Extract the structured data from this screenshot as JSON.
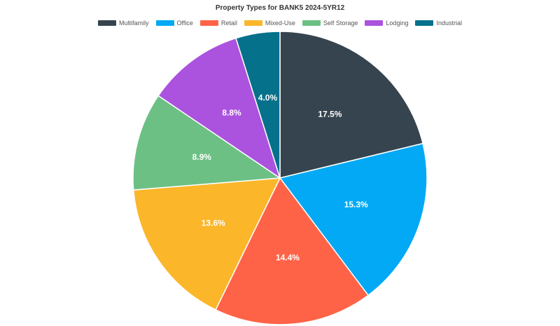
{
  "chart_data": {
    "type": "pie",
    "title": "Property Types for BANK5 2024-5YR12",
    "legend_position": "top",
    "categories": [
      "Multifamily",
      "Office",
      "Retail",
      "Mixed-Use",
      "Self Storage",
      "Lodging",
      "Industrial"
    ],
    "values": [
      17.5,
      15.3,
      14.4,
      13.6,
      8.9,
      8.8,
      4.0
    ],
    "labels": [
      "17.5%",
      "15.3%",
      "14.4%",
      "13.6%",
      "8.9%",
      "8.8%",
      "4.0%"
    ],
    "colors": [
      "#36444f",
      "#03a9f4",
      "#ff6347",
      "#fbb62a",
      "#6cc084",
      "#ab52de",
      "#06718b"
    ]
  }
}
